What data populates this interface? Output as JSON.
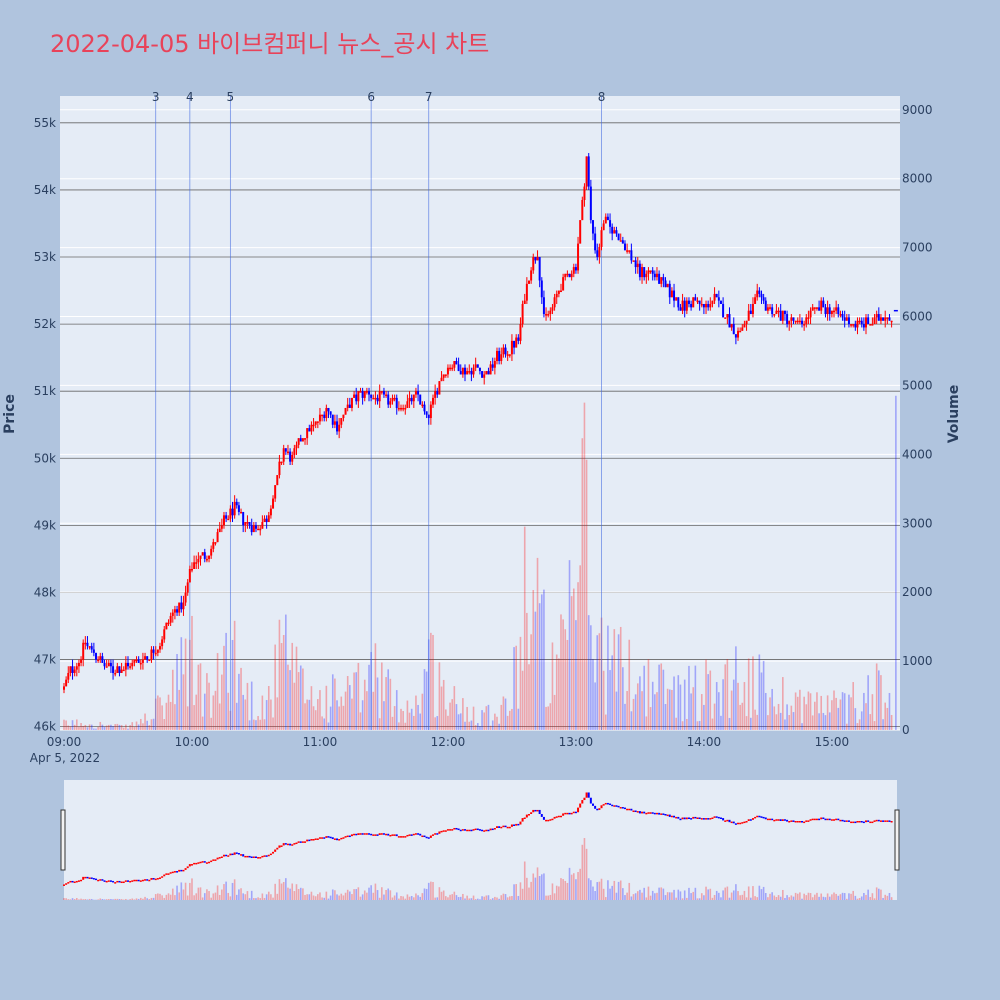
{
  "page": {
    "title": "2022-04-05 바이브컴퍼니 뉴스_공시 차트"
  },
  "colors": {
    "up": "#ff0000",
    "down": "#0000ff",
    "background": "#b0c4de",
    "plot_bg": "#e5ecf6",
    "title": "#e8435a"
  },
  "chart_data": {
    "type": "candlestick",
    "title": "2022-04-05 바이브컴퍼니 뉴스_공시 차트",
    "ylabel": "Price",
    "y2label": "Volume",
    "ylim": [
      45950,
      55400
    ],
    "y2lim": [
      0,
      9200
    ],
    "y_ticks": [
      {
        "v": 46000,
        "label": "46k"
      },
      {
        "v": 47000,
        "label": "47k"
      },
      {
        "v": 48000,
        "label": "48k"
      },
      {
        "v": 49000,
        "label": "49k"
      },
      {
        "v": 50000,
        "label": "50k"
      },
      {
        "v": 51000,
        "label": "51k"
      },
      {
        "v": 52000,
        "label": "52k"
      },
      {
        "v": 53000,
        "label": "53k"
      },
      {
        "v": 54000,
        "label": "54k"
      },
      {
        "v": 55000,
        "label": "55k"
      }
    ],
    "y2_ticks": [
      {
        "v": 0,
        "label": "0"
      },
      {
        "v": 1000,
        "label": "1000"
      },
      {
        "v": 2000,
        "label": "2000"
      },
      {
        "v": 3000,
        "label": "3000"
      },
      {
        "v": 4000,
        "label": "4000"
      },
      {
        "v": 5000,
        "label": "5000"
      },
      {
        "v": 6000,
        "label": "6000"
      },
      {
        "v": 7000,
        "label": "7000"
      },
      {
        "v": 8000,
        "label": "8000"
      },
      {
        "v": 9000,
        "label": "9000"
      }
    ],
    "x_ticks": [
      {
        "t": "09:00",
        "label": "09:00"
      },
      {
        "t": "10:00",
        "label": "10:00"
      },
      {
        "t": "11:00",
        "label": "11:00"
      },
      {
        "t": "12:00",
        "label": "12:00"
      },
      {
        "t": "13:00",
        "label": "13:00"
      },
      {
        "t": "14:00",
        "label": "14:00"
      },
      {
        "t": "15:00",
        "label": "15:00"
      }
    ],
    "x_date_label": "Apr 5, 2022",
    "x_range": [
      "09:00",
      "15:30"
    ],
    "news_markers": [
      {
        "label": "3",
        "time": "09:43"
      },
      {
        "label": "4",
        "time": "09:59"
      },
      {
        "label": "5",
        "time": "10:18"
      },
      {
        "label": "6",
        "time": "11:24"
      },
      {
        "label": "7",
        "time": "11:51"
      },
      {
        "label": "8",
        "time": "13:12"
      }
    ],
    "price_path": [
      [
        "09:00",
        46550
      ],
      [
        "09:03",
        46850
      ],
      [
        "09:07",
        46950
      ],
      [
        "09:10",
        47250
      ],
      [
        "09:14",
        47100
      ],
      [
        "09:18",
        46950
      ],
      [
        "09:23",
        46850
      ],
      [
        "09:30",
        46900
      ],
      [
        "09:35",
        47000
      ],
      [
        "09:40",
        47050
      ],
      [
        "09:45",
        47250
      ],
      [
        "09:48",
        47500
      ],
      [
        "09:52",
        47750
      ],
      [
        "09:56",
        47800
      ],
      [
        "09:59",
        48300
      ],
      [
        "10:02",
        48500
      ],
      [
        "10:06",
        48550
      ],
      [
        "10:10",
        48700
      ],
      [
        "10:15",
        49050
      ],
      [
        "10:20",
        49250
      ],
      [
        "10:25",
        49050
      ],
      [
        "10:30",
        48950
      ],
      [
        "10:35",
        49100
      ],
      [
        "10:39",
        49550
      ],
      [
        "10:43",
        50150
      ],
      [
        "10:47",
        50000
      ],
      [
        "10:52",
        50350
      ],
      [
        "10:58",
        50500
      ],
      [
        "11:03",
        50750
      ],
      [
        "11:08",
        50500
      ],
      [
        "11:13",
        50750
      ],
      [
        "11:18",
        50950
      ],
      [
        "11:22",
        51000
      ],
      [
        "11:26",
        50900
      ],
      [
        "11:30",
        50900
      ],
      [
        "11:35",
        50800
      ],
      [
        "11:41",
        50800
      ],
      [
        "11:46",
        50950
      ],
      [
        "11:50",
        50550
      ],
      [
        "11:53",
        50850
      ],
      [
        "11:56",
        51150
      ],
      [
        "11:59",
        51350
      ],
      [
        "12:03",
        51400
      ],
      [
        "12:08",
        51300
      ],
      [
        "12:13",
        51350
      ],
      [
        "12:18",
        51250
      ],
      [
        "12:23",
        51500
      ],
      [
        "12:28",
        51600
      ],
      [
        "12:33",
        51750
      ],
      [
        "12:36",
        52450
      ],
      [
        "12:39",
        52850
      ],
      [
        "12:42",
        53100
      ],
      [
        "12:45",
        52050
      ],
      [
        "12:49",
        52250
      ],
      [
        "12:53",
        52600
      ],
      [
        "12:57",
        52750
      ],
      [
        "13:00",
        52900
      ],
      [
        "13:03",
        53800
      ],
      [
        "13:05",
        54500
      ],
      [
        "13:07",
        53500
      ],
      [
        "13:10",
        53000
      ],
      [
        "13:13",
        53550
      ],
      [
        "13:16",
        53450
      ],
      [
        "13:20",
        53300
      ],
      [
        "13:25",
        53050
      ],
      [
        "13:30",
        52750
      ],
      [
        "13:35",
        52800
      ],
      [
        "13:40",
        52600
      ],
      [
        "13:45",
        52450
      ],
      [
        "13:50",
        52250
      ],
      [
        "13:55",
        52350
      ],
      [
        "14:00",
        52250
      ],
      [
        "14:05",
        52400
      ],
      [
        "14:10",
        52150
      ],
      [
        "14:15",
        51850
      ],
      [
        "14:20",
        52050
      ],
      [
        "14:25",
        52400
      ],
      [
        "14:30",
        52250
      ],
      [
        "14:35",
        52150
      ],
      [
        "14:40",
        52050
      ],
      [
        "14:45",
        52000
      ],
      [
        "14:50",
        52150
      ],
      [
        "14:55",
        52250
      ],
      [
        "15:00",
        52200
      ],
      [
        "15:05",
        52100
      ],
      [
        "15:10",
        52000
      ],
      [
        "15:15",
        52000
      ],
      [
        "15:20",
        52050
      ],
      [
        "15:25",
        52150
      ],
      [
        "15:28",
        52100
      ]
    ],
    "volume_path": [
      [
        "09:00",
        120
      ],
      [
        "09:10",
        150
      ],
      [
        "09:20",
        90
      ],
      [
        "09:30",
        60
      ],
      [
        "09:40",
        250
      ],
      [
        "09:50",
        650
      ],
      [
        "09:59",
        1500
      ],
      [
        "10:05",
        800
      ],
      [
        "10:10",
        600
      ],
      [
        "10:18",
        1800
      ],
      [
        "10:25",
        700
      ],
      [
        "10:35",
        500
      ],
      [
        "10:43",
        1600
      ],
      [
        "10:50",
        900
      ],
      [
        "11:00",
        600
      ],
      [
        "11:10",
        700
      ],
      [
        "11:20",
        800
      ],
      [
        "11:26",
        1200
      ],
      [
        "11:35",
        500
      ],
      [
        "11:45",
        500
      ],
      [
        "11:51",
        1400
      ],
      [
        "12:00",
        600
      ],
      [
        "12:10",
        400
      ],
      [
        "12:20",
        350
      ],
      [
        "12:30",
        600
      ],
      [
        "12:36",
        3000
      ],
      [
        "12:42",
        2300
      ],
      [
        "12:50",
        900
      ],
      [
        "13:00",
        2500
      ],
      [
        "13:03",
        5200
      ],
      [
        "13:07",
        2000
      ],
      [
        "13:15",
        1400
      ],
      [
        "13:25",
        1200
      ],
      [
        "13:35",
        900
      ],
      [
        "13:45",
        800
      ],
      [
        "13:55",
        800
      ],
      [
        "14:05",
        900
      ],
      [
        "14:15",
        1100
      ],
      [
        "14:25",
        900
      ],
      [
        "14:35",
        700
      ],
      [
        "14:45",
        600
      ],
      [
        "14:55",
        500
      ],
      [
        "15:05",
        500
      ],
      [
        "15:15",
        700
      ],
      [
        "15:22",
        900
      ],
      [
        "15:28",
        400
      ]
    ],
    "closing_marker": {
      "time": "15:30",
      "price": 52200
    },
    "range_slider": true
  }
}
